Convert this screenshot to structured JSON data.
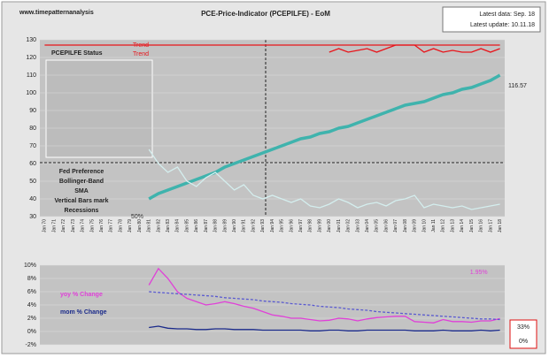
{
  "chart_data": [
    {
      "type": "line",
      "title": "PCE-Price-Indicator (PCEPILFE) - EoM",
      "site": "www.timepatternanalysis",
      "info": [
        "Latest data:  Sep. 18",
        "Latest update:  10.11.18"
      ],
      "status_label": "PCEPILFE Status",
      "legend_notes": [
        "Fed Preference",
        "Bollinger-Band",
        "SMA",
        "Vertical Bars mark",
        "Recessions"
      ],
      "annotations": [
        "50%",
        "116.57"
      ],
      "categories": [
        "Jan 70",
        "Jan 71",
        "Jan 72",
        "Jan 73",
        "Jan 74",
        "Jan 75",
        "Jan 76",
        "Jan 77",
        "Jan 78",
        "Jan 79",
        "Jan 80",
        "Jan 81",
        "Jan 82",
        "Jan 83",
        "Jan 84",
        "Jan 85",
        "Jan 86",
        "Jan 87",
        "Jan 88",
        "Jan 89",
        "Jan 90",
        "Jan 91",
        "Jan 92",
        "Jan 93",
        "Jan 94",
        "Jan 95",
        "Jan 96",
        "Jan 97",
        "Jan 98",
        "Jan 99",
        "Jan 00",
        "Jan 01",
        "Jan 02",
        "Jan 03",
        "Jan 04",
        "Jan 05",
        "Jan 06",
        "Jan 07",
        "Jan 08",
        "Jan 09",
        "Jan 10",
        "Jan 11",
        "Jan 12",
        "Jan 13",
        "Jan 14",
        "Jan 15",
        "Jan 16",
        "Jan 17",
        "Jan 18"
      ],
      "series": [
        {
          "color": "#3fb3ad",
          "values": [
            null,
            null,
            null,
            null,
            null,
            null,
            null,
            null,
            null,
            null,
            null,
            40,
            43,
            45,
            47,
            49,
            51,
            53,
            55,
            58,
            60,
            62,
            64,
            66,
            68,
            70,
            72,
            74,
            75,
            77,
            78,
            80,
            81,
            83,
            85,
            87,
            89,
            91,
            93,
            94,
            95,
            97,
            99,
            100,
            102,
            103,
            105,
            107,
            110
          ]
        },
        {
          "color": "#d4eeee",
          "values": [
            null,
            null,
            null,
            null,
            null,
            null,
            null,
            null,
            null,
            null,
            null,
            68,
            60,
            55,
            58,
            50,
            47,
            52,
            55,
            50,
            45,
            48,
            42,
            40,
            42,
            40,
            38,
            40,
            36,
            35,
            37,
            40,
            38,
            35,
            37,
            38,
            36,
            39,
            40,
            42,
            35,
            37,
            36,
            35,
            36,
            34,
            35,
            36,
            37
          ]
        },
        {
          "name": "Trend",
          "color": "#e8141a",
          "values": [
            127,
            127,
            127,
            127,
            127,
            127,
            127,
            127,
            127,
            127,
            127,
            127,
            127,
            127,
            127,
            127,
            127,
            127,
            127,
            127,
            127,
            127,
            127,
            127,
            127,
            127,
            127,
            127,
            127,
            127,
            127,
            127,
            127,
            127,
            127,
            127,
            127,
            127,
            127,
            127,
            127,
            127,
            127,
            127,
            127,
            127,
            127,
            127,
            127
          ]
        },
        {
          "name": "Trend",
          "color": "#e8141a",
          "values": [
            null,
            null,
            null,
            null,
            null,
            null,
            null,
            null,
            null,
            null,
            null,
            null,
            null,
            null,
            null,
            null,
            null,
            null,
            null,
            null,
            null,
            null,
            null,
            null,
            null,
            null,
            null,
            null,
            null,
            null,
            123,
            125,
            123,
            124,
            125,
            123,
            125,
            127,
            127,
            127,
            123,
            125,
            123,
            124,
            123,
            123,
            125,
            123,
            125
          ]
        }
      ],
      "ylim": [
        30,
        130
      ],
      "yticks": [
        30,
        40,
        50,
        60,
        70,
        80,
        90,
        100,
        110,
        120,
        130
      ],
      "grid": true
    },
    {
      "type": "line",
      "annotations": [
        "33%",
        "0%"
      ],
      "series": [
        {
          "name": "yoy % Change",
          "color": "#e040d8",
          "values": [
            null,
            null,
            null,
            null,
            null,
            null,
            null,
            null,
            null,
            null,
            null,
            7,
            9.5,
            8,
            6,
            5,
            4.5,
            4,
            4.2,
            4.5,
            4.2,
            3.8,
            3.5,
            3,
            2.5,
            2.3,
            2,
            2,
            1.8,
            1.6,
            1.7,
            2,
            1.9,
            1.6,
            1.9,
            2.1,
            2.2,
            2.3,
            2.3,
            1.5,
            1.4,
            1.3,
            1.8,
            1.5,
            1.5,
            1.4,
            1.6,
            1.6,
            1.95
          ],
          "value_labels": {
            "48": "1.95%"
          }
        },
        {
          "name": "mom % Change",
          "color": "#1a2a8a",
          "values": [
            null,
            null,
            null,
            null,
            null,
            null,
            null,
            null,
            null,
            null,
            null,
            0.6,
            0.8,
            0.5,
            0.4,
            0.4,
            0.3,
            0.3,
            0.4,
            0.4,
            0.3,
            0.3,
            0.3,
            0.2,
            0.2,
            0.2,
            0.2,
            0.2,
            0.1,
            0.1,
            0.2,
            0.2,
            0.1,
            0.1,
            0.2,
            0.2,
            0.2,
            0.2,
            0.2,
            0.1,
            0.1,
            0.1,
            0.2,
            0.1,
            0.1,
            0.1,
            0.2,
            0.1,
            0.2
          ]
        },
        {
          "color": "#5a5ad0",
          "dashed": true,
          "values": [
            null,
            null,
            null,
            null,
            null,
            null,
            null,
            null,
            null,
            null,
            null,
            6.0,
            5.9,
            5.8,
            5.7,
            5.6,
            5.5,
            5.4,
            5.3,
            5.1,
            5.0,
            4.9,
            4.8,
            4.6,
            4.5,
            4.4,
            4.2,
            4.1,
            4.0,
            3.8,
            3.7,
            3.6,
            3.4,
            3.3,
            3.2,
            3.0,
            2.9,
            2.8,
            2.7,
            2.6,
            2.5,
            2.4,
            2.3,
            2.2,
            2.1,
            2.0,
            1.9,
            1.9,
            1.8
          ]
        }
      ],
      "ylim": [
        -2,
        10
      ],
      "yticks": [
        {
          "value": -2,
          "label": "-2%"
        },
        {
          "value": 0,
          "label": "0%"
        },
        {
          "value": 2,
          "label": "2%"
        },
        {
          "value": 4,
          "label": "4%"
        },
        {
          "value": 6,
          "label": "6%"
        },
        {
          "value": 8,
          "label": "8%"
        },
        {
          "value": 10,
          "label": "10%"
        }
      ],
      "grid": true
    }
  ]
}
